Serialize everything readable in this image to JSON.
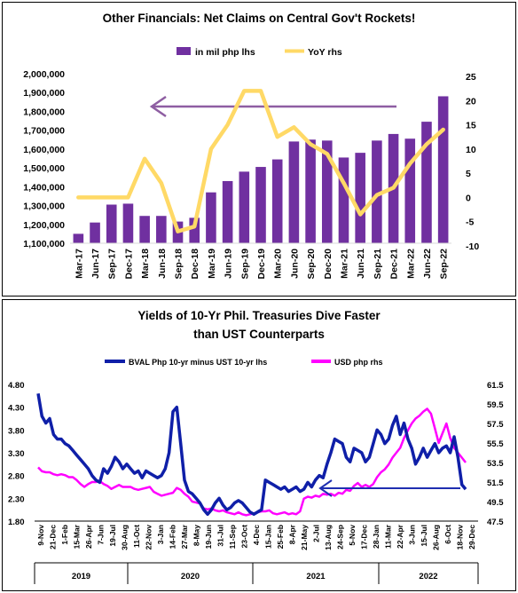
{
  "chart_data": [
    {
      "type": "bar",
      "title": "Other Financials: Net Claims on Central Gov't Rockets!",
      "legend_position": "top",
      "colors": {
        "bar": "#7030A0",
        "line": "#FFD966",
        "arrow": "#8E5EA2"
      },
      "categories": [
        "Mar-17",
        "Jun-17",
        "Sep-17",
        "Dec-17",
        "Mar-18",
        "Jun-18",
        "Sep-18",
        "Dec-18",
        "Mar-19",
        "Jun-19",
        "Sep-19",
        "Dec-19",
        "Mar-20",
        "Jun-20",
        "Sep-20",
        "Dec-20",
        "Mar-21",
        "Jun-21",
        "Sep-21",
        "Dec-21",
        "Mar-22",
        "Jun-22",
        "Sep-22"
      ],
      "series": [
        {
          "name": "in mil php lhs",
          "axis": "left",
          "type": "bar",
          "values": [
            1150000,
            1210000,
            1305000,
            1310000,
            1245000,
            1245000,
            1215000,
            1235000,
            1370000,
            1430000,
            1480000,
            1505000,
            1545000,
            1640000,
            1650000,
            1645000,
            1555000,
            1580000,
            1645000,
            1680000,
            1655000,
            1745000,
            1880000
          ]
        },
        {
          "name": "YoY rhs",
          "axis": "right",
          "type": "line",
          "values": [
            0,
            0,
            0,
            0,
            8,
            3,
            -7,
            -6,
            10,
            15,
            22,
            22,
            12.5,
            14.5,
            11,
            9,
            3,
            -3.5,
            0.5,
            2,
            7,
            11,
            14
          ]
        }
      ],
      "y_left": {
        "min": 1100000,
        "max": 2000000,
        "ticks": [
          "1,100,000",
          "1,200,000",
          "1,300,000",
          "1,400,000",
          "1,500,000",
          "1,600,000",
          "1,700,000",
          "1,800,000",
          "1,900,000",
          "2,000,000"
        ]
      },
      "y_right": {
        "min": -10,
        "max": 25,
        "ticks": [
          "-10",
          "-5",
          "0",
          "5",
          "10",
          "15",
          "20",
          "25"
        ]
      },
      "grid": false
    },
    {
      "type": "line",
      "title_lines": [
        "Yields of 10-Yr Phil. Treasuries Dive Faster",
        "than UST Counterparts"
      ],
      "legend_position": "top",
      "colors": {
        "series1": "#0F1FA8",
        "series2": "#FF00FF",
        "arrow": "#1F2FB0"
      },
      "series": [
        {
          "name": "BVAL Php 10-yr minus UST 10-yr lhs",
          "axis": "left",
          "values": [
            4.6,
            4.1,
            3.95,
            4.05,
            3.7,
            3.6,
            3.6,
            3.5,
            3.45,
            3.35,
            3.25,
            3.15,
            3.05,
            2.95,
            2.8,
            2.7,
            2.65,
            2.95,
            2.85,
            3.0,
            3.2,
            3.1,
            2.95,
            3.05,
            2.95,
            2.85,
            2.9,
            2.75,
            2.9,
            2.85,
            2.8,
            2.75,
            2.8,
            2.95,
            3.3,
            4.2,
            4.3,
            3.5,
            2.7,
            2.45,
            2.4,
            2.3,
            2.2,
            2.05,
            1.95,
            2.05,
            2.2,
            2.3,
            2.15,
            2.05,
            2.1,
            2.2,
            2.25,
            2.2,
            2.1,
            2.0,
            1.95,
            2.0,
            2.05,
            2.7,
            2.65,
            2.6,
            2.55,
            2.5,
            2.55,
            2.45,
            2.5,
            2.55,
            2.45,
            2.5,
            2.65,
            2.55,
            2.7,
            2.8,
            2.75,
            3.05,
            3.3,
            3.6,
            3.55,
            3.5,
            3.2,
            3.1,
            3.4,
            3.35,
            3.3,
            3.1,
            3.2,
            3.5,
            3.8,
            3.7,
            3.5,
            3.6,
            3.9,
            4.1,
            3.7,
            3.95,
            3.6,
            3.4,
            3.05,
            3.2,
            3.4,
            3.2,
            3.35,
            3.5,
            3.3,
            3.4,
            3.45,
            3.3,
            3.65,
            3.2,
            2.6,
            2.5
          ]
        },
        {
          "name": "USD php rhs",
          "axis": "right",
          "values": [
            53,
            52.6,
            52.5,
            52.5,
            52.3,
            52.2,
            52.3,
            52.2,
            52.0,
            52.0,
            51.7,
            51.3,
            51.0,
            51.3,
            51.5,
            51.5,
            51.6,
            51.3,
            51.1,
            50.8,
            51.0,
            51.2,
            51.0,
            51.0,
            51.0,
            50.8,
            50.7,
            50.8,
            50.9,
            51.0,
            50.5,
            50.3,
            50.1,
            50.2,
            50.3,
            50.4,
            50.9,
            50.7,
            50.3,
            50.0,
            49.5,
            49.4,
            49.3,
            48.8,
            48.7,
            48.8,
            48.6,
            48.5,
            48.6,
            48.4,
            48.3,
            48.2,
            48.4,
            48.2,
            48.1,
            48.2,
            48.3,
            48.4,
            48.5,
            48.5,
            48.6,
            48.3,
            48.2,
            48.3,
            48.4,
            48.2,
            48.3,
            48.2,
            48.5,
            49.8,
            50.0,
            49.9,
            50.1,
            50.0,
            50.3,
            50.2,
            50.3,
            50.1,
            50.4,
            50.3,
            50.7,
            50.6,
            51.1,
            51.4,
            51.0,
            51.2,
            51.0,
            51.3,
            52.0,
            52.5,
            52.8,
            53.3,
            54.0,
            54.5,
            55.0,
            56.0,
            56.8,
            57.5,
            58.0,
            58.3,
            58.7,
            59.0,
            58.5,
            57.0,
            55.5,
            56.5,
            57.5,
            56.0,
            55.0,
            54.5,
            54.0,
            53.5
          ]
        }
      ],
      "y_left": {
        "min": 1.8,
        "max": 4.8,
        "ticks": [
          "4.80",
          "4.30",
          "3.80",
          "3.30",
          "2.80",
          "2.30",
          "1.80"
        ]
      },
      "y_right": {
        "min": 47.5,
        "max": 61.5,
        "ticks": [
          "61.5",
          "59.5",
          "57.5",
          "55.5",
          "53.5",
          "51.5",
          "49.5",
          "47.5"
        ]
      },
      "x_ticks": [
        "9-Nov",
        "21-Dec",
        "1-Feb",
        "15-Mar",
        "26-Apr",
        "7-Jun",
        "19-Jul",
        "30-Aug",
        "11-Oct",
        "22-Nov",
        "3-Jan",
        "14-Feb",
        "27-Mar",
        "8-May",
        "19-Jun",
        "31-Jul",
        "11-Sep",
        "23-Oct",
        "4-Dec",
        "15-Jan",
        "25-Feb",
        "8-Apr",
        "21-May",
        "2-Jul",
        "13-Aug",
        "24-Sep",
        "5-Nov",
        "17-Dec",
        "28-Jan",
        "11-Mar",
        "22-Apr",
        "3-Jun",
        "15-Jul",
        "26-Aug",
        "6-Oct",
        "18-Nov",
        "29-Dec"
      ],
      "year_groups": [
        "2019",
        "2020",
        "2021",
        "2022"
      ],
      "grid": false
    }
  ]
}
